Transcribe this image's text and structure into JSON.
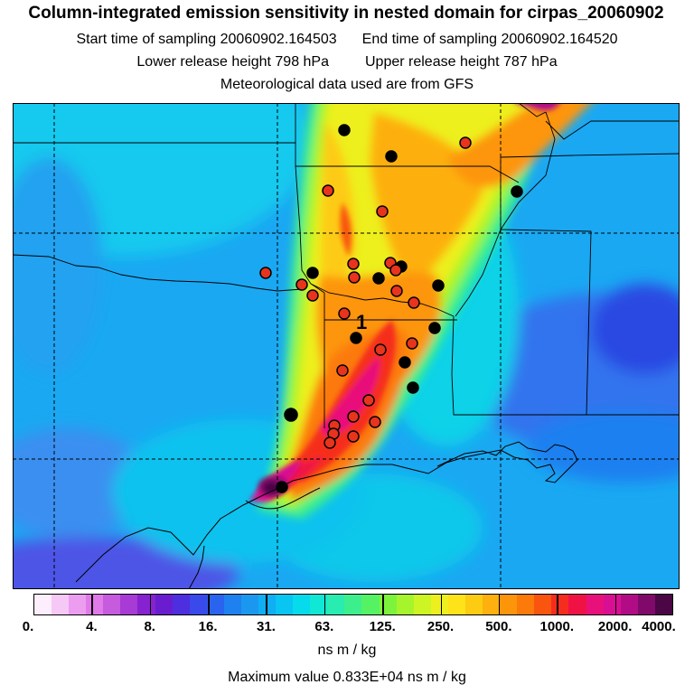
{
  "title": "Column-integrated emission sensitivity in nested domain for cirpas_20060902",
  "start_label": "Start time of sampling 20060902.164503",
  "end_label": "End time of sampling 20060902.164520",
  "lower_label": "Lower release height  798 hPa",
  "upper_label": "Upper release height  787 hPa",
  "met_label": "Meteorological data used are from GFS",
  "release_marker": "1",
  "colorbar": {
    "tick_labels": [
      "0.",
      "4.",
      "8.",
      "16.",
      "31.",
      "63.",
      "125.",
      "250.",
      "500.",
      "1000.",
      "2000.",
      "4000."
    ],
    "colors": [
      "#fdeefe",
      "#f5c8f6",
      "#ec9df0",
      "#e07ae8",
      "#c65bde",
      "#a83ad6",
      "#8722d0",
      "#6a1dcf",
      "#4d2fe0",
      "#3949ea",
      "#2a63ee",
      "#1f80f0",
      "#1a98f0",
      "#10aef2",
      "#08c5f2",
      "#05dbea",
      "#10e7d4",
      "#28ecb0",
      "#3cef8c",
      "#55f264",
      "#7df43c",
      "#a6f52c",
      "#cdf423",
      "#edf01e",
      "#fde318",
      "#fdcb12",
      "#fdb00e",
      "#fd950b",
      "#fc7a0a",
      "#f9550f",
      "#f52d1f",
      "#f01245",
      "#e8107a",
      "#d80f92",
      "#b10c86",
      "#7f0a6a",
      "#4a0645"
    ],
    "units": "ns m / kg"
  },
  "max_label": "Maximum value  0.833E+04 ns m / kg",
  "colors": {
    "background_field": "#1aa8f2",
    "plume_core": "#f52d1f",
    "receptor_black": "#000000",
    "receptor_red": "#e8341c"
  }
}
